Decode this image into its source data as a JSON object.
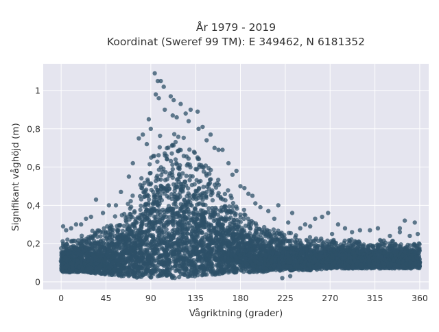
{
  "chart_data": {
    "type": "scatter",
    "title_line1": "År 1979 - 2019",
    "title_line2": "Koordinat (Sweref 99 TM): E 349462, N 6181352",
    "xlabel": "Vågriktning (grader)",
    "ylabel": "Signifikant våghöjd (m)",
    "xlim": [
      -18,
      369
    ],
    "ylim": [
      -0.04,
      1.14
    ],
    "x_ticks": [
      0,
      45,
      90,
      135,
      180,
      225,
      270,
      315,
      360
    ],
    "x_tick_labels": [
      "0",
      "45",
      "90",
      "135",
      "180",
      "225",
      "270",
      "315",
      "360"
    ],
    "y_ticks": [
      0,
      0.2,
      0.4,
      0.6,
      0.8,
      1
    ],
    "y_tick_labels": [
      "0",
      "0,2",
      "0,4",
      "0,6",
      "0,8",
      "1"
    ],
    "grid": true,
    "marker_color": "#2e5068",
    "plot_background": "#e5e5ef",
    "envelope": {
      "direction": [
        0,
        20,
        40,
        60,
        80,
        90,
        100,
        110,
        120,
        140,
        160,
        180,
        200,
        225,
        250,
        270,
        300,
        330,
        360
      ],
      "lower": [
        0.05,
        0.05,
        0.04,
        0.03,
        0.02,
        0.02,
        0.02,
        0.02,
        0.02,
        0.03,
        0.04,
        0.05,
        0.05,
        0.06,
        0.06,
        0.07,
        0.07,
        0.07,
        0.07
      ],
      "upper": [
        0.22,
        0.25,
        0.29,
        0.37,
        0.55,
        0.7,
        0.8,
        0.83,
        0.8,
        0.68,
        0.55,
        0.4,
        0.3,
        0.26,
        0.24,
        0.23,
        0.22,
        0.22,
        0.21
      ]
    },
    "series": [
      {
        "values": [
          [
            94,
            1.09
          ],
          [
            97,
            1.05
          ],
          [
            100,
            1.05
          ],
          [
            103,
            1.02
          ],
          [
            95,
            0.98
          ],
          [
            98,
            0.96
          ],
          [
            110,
            0.97
          ],
          [
            113,
            0.95
          ],
          [
            120,
            0.93
          ],
          [
            130,
            0.9
          ],
          [
            137,
            0.89
          ],
          [
            125,
            0.88
          ],
          [
            112,
            0.87
          ],
          [
            142,
            0.81
          ],
          [
            138,
            0.8
          ],
          [
            88,
            0.85
          ],
          [
            82,
            0.77
          ],
          [
            78,
            0.75
          ],
          [
            150,
            0.77
          ],
          [
            158,
            0.69
          ],
          [
            162,
            0.69
          ],
          [
            168,
            0.62
          ],
          [
            176,
            0.58
          ],
          [
            180,
            0.5
          ],
          [
            188,
            0.46
          ],
          [
            195,
            0.41
          ],
          [
            200,
            0.39
          ],
          [
            208,
            0.37
          ],
          [
            218,
            0.4
          ],
          [
            232,
            0.36
          ],
          [
            245,
            0.3
          ],
          [
            255,
            0.33
          ],
          [
            262,
            0.34
          ],
          [
            268,
            0.36
          ],
          [
            278,
            0.3
          ],
          [
            285,
            0.28
          ],
          [
            300,
            0.27
          ],
          [
            310,
            0.27
          ],
          [
            318,
            0.28
          ],
          [
            340,
            0.28
          ],
          [
            345,
            0.32
          ],
          [
            355,
            0.31
          ],
          [
            358,
            0.25
          ],
          [
            340,
            0.26
          ],
          [
            68,
            0.55
          ],
          [
            60,
            0.47
          ],
          [
            55,
            0.4
          ],
          [
            48,
            0.4
          ],
          [
            35,
            0.43
          ],
          [
            30,
            0.34
          ],
          [
            20,
            0.3
          ],
          [
            15,
            0.3
          ],
          [
            10,
            0.28
          ],
          [
            2,
            0.29
          ],
          [
            5,
            0.27
          ],
          [
            25,
            0.33
          ],
          [
            42,
            0.36
          ],
          [
            72,
            0.62
          ],
          [
            86,
            0.72
          ],
          [
            90,
            0.8
          ],
          [
            104,
            0.9
          ],
          [
            116,
            0.86
          ],
          [
            128,
            0.84
          ],
          [
            146,
            0.74
          ],
          [
            154,
            0.7
          ],
          [
            172,
            0.56
          ],
          [
            184,
            0.49
          ],
          [
            192,
            0.45
          ],
          [
            214,
            0.33
          ],
          [
            228,
            0.31
          ],
          [
            240,
            0.28
          ],
          [
            250,
            0.29
          ],
          [
            272,
            0.25
          ],
          [
            292,
            0.26
          ],
          [
            330,
            0.24
          ],
          [
            350,
            0.24
          ],
          [
            222,
            0.02
          ],
          [
            230,
            0.03
          ]
        ]
      }
    ]
  }
}
